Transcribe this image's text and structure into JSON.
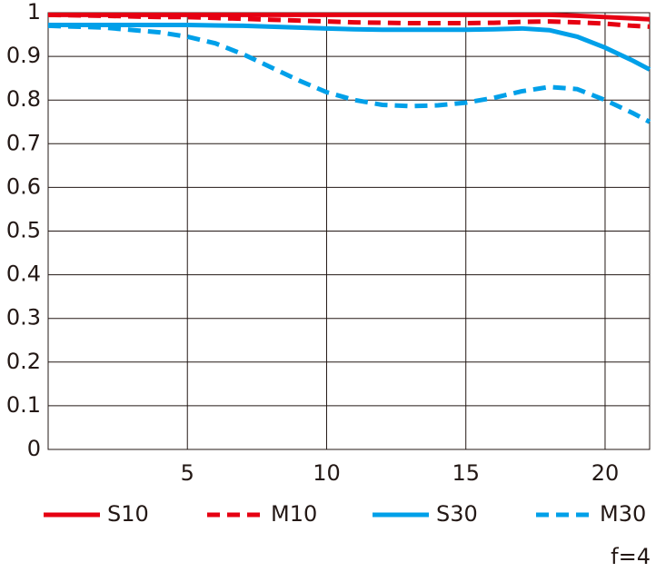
{
  "chart_data": {
    "type": "line",
    "annotation": "f=4",
    "x": [
      0,
      2,
      4,
      5,
      6,
      7,
      8,
      9,
      10,
      11,
      12,
      13,
      14,
      15,
      16,
      17,
      18,
      19,
      20,
      21,
      21.6
    ],
    "series": [
      {
        "name": "S10",
        "color": "#e60012",
        "style": "solid",
        "values": [
          0.995,
          0.995,
          0.995,
          0.995,
          0.995,
          0.995,
          0.995,
          0.995,
          0.995,
          0.995,
          0.995,
          0.995,
          0.995,
          0.995,
          0.995,
          0.995,
          0.995,
          0.993,
          0.99,
          0.987,
          0.985
        ]
      },
      {
        "name": "M10",
        "color": "#e60012",
        "style": "dashed",
        "values": [
          0.995,
          0.993,
          0.99,
          0.99,
          0.988,
          0.986,
          0.984,
          0.982,
          0.98,
          0.978,
          0.977,
          0.976,
          0.976,
          0.976,
          0.977,
          0.979,
          0.98,
          0.978,
          0.975,
          0.97,
          0.968
        ]
      },
      {
        "name": "S30",
        "color": "#00a0e9",
        "style": "solid",
        "values": [
          0.972,
          0.972,
          0.972,
          0.972,
          0.971,
          0.97,
          0.968,
          0.966,
          0.964,
          0.962,
          0.961,
          0.961,
          0.961,
          0.961,
          0.962,
          0.964,
          0.96,
          0.945,
          0.92,
          0.89,
          0.87
        ]
      },
      {
        "name": "M30",
        "color": "#00a0e9",
        "style": "dashed",
        "values": [
          0.97,
          0.966,
          0.955,
          0.945,
          0.93,
          0.905,
          0.875,
          0.845,
          0.818,
          0.8,
          0.789,
          0.786,
          0.788,
          0.794,
          0.805,
          0.82,
          0.83,
          0.825,
          0.8,
          0.77,
          0.75
        ]
      }
    ],
    "xlim": [
      0,
      21.6
    ],
    "xticks": [
      5,
      10,
      15,
      20
    ],
    "ylim": [
      0,
      1
    ],
    "yticks": [
      0,
      0.1,
      0.2,
      0.3,
      0.4,
      0.5,
      0.6,
      0.7,
      0.8,
      0.9,
      1
    ],
    "grid": true,
    "legend": "bottom"
  }
}
